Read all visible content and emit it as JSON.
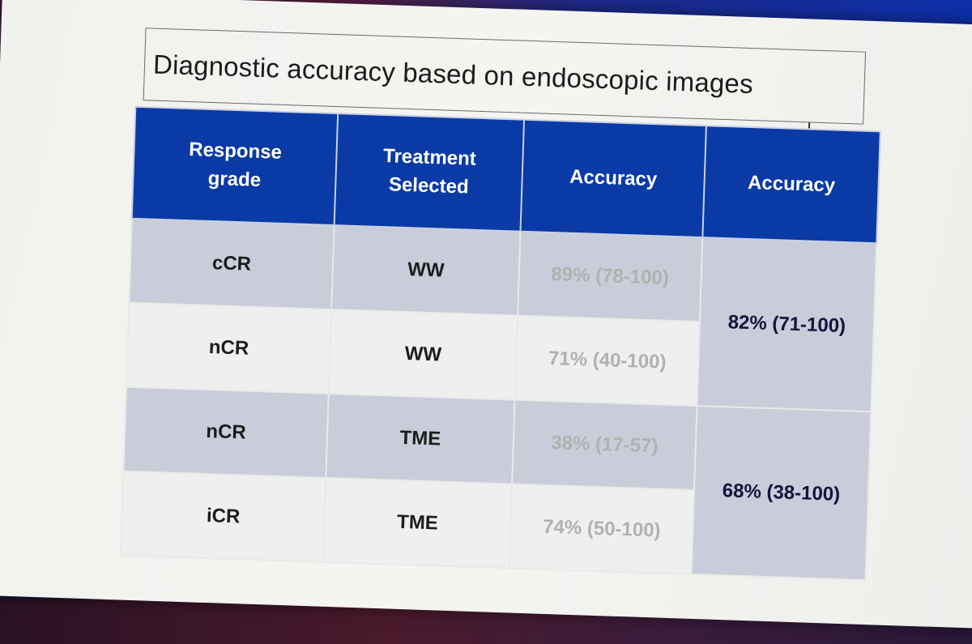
{
  "slide": {
    "title": "Diagnostic accuracy based on endoscopic images"
  },
  "table": {
    "headers": [
      "Response\ngrade",
      "Treatment\nSelected",
      "Accuracy",
      "Accuracy"
    ],
    "rows": [
      {
        "grade": "cCR",
        "treatment": "WW",
        "accuracy": "89% (78-100)"
      },
      {
        "grade": "nCR",
        "treatment": "WW",
        "accuracy": "71% (40-100)"
      },
      {
        "grade": "nCR",
        "treatment": "TME",
        "accuracy": "38% (17-57)"
      },
      {
        "grade": "iCR",
        "treatment": "TME",
        "accuracy": "74% (50-100)"
      }
    ],
    "merged_accuracy": [
      "82% (71-100)",
      "68% (38-100)"
    ]
  },
  "colors": {
    "header_bg": "#0a3aa6",
    "row_dark": "#c9cdda",
    "row_light": "#efefef",
    "faded_text": "#b1b1b1"
  }
}
